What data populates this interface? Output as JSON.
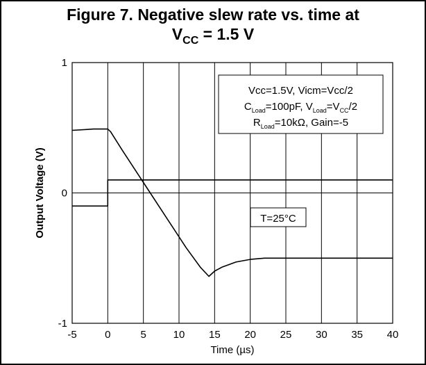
{
  "title_line1": "Figure 7. Negative slew rate vs. time at",
  "title_line2": {
    "prefix": "V",
    "sub": "CC",
    "suffix": " = 1.5 V"
  },
  "chart_data": {
    "type": "line",
    "xlabel": "Time (µs)",
    "ylabel": "Output Voltage (V)",
    "xlim": [
      -5,
      40
    ],
    "ylim": [
      -1,
      1
    ],
    "x_ticks": [
      -5,
      0,
      5,
      10,
      15,
      20,
      25,
      30,
      35,
      40
    ],
    "y_ticks": [
      1,
      0,
      -1
    ],
    "x_tick_labels": [
      "-5",
      "0",
      "5",
      "10",
      "15",
      "20",
      "25",
      "30",
      "35",
      "40"
    ],
    "y_tick_labels": [
      "1",
      "0",
      "-1"
    ],
    "grid": "vertical",
    "series": [
      {
        "color": "#000000",
        "x": [
          -5,
          0,
          0,
          40
        ],
        "y": [
          -0.1,
          -0.1,
          0.1,
          0.1
        ]
      },
      {
        "color": "#000000",
        "x": [
          -5,
          -2,
          0,
          0.4,
          2,
          5,
          8,
          11,
          13,
          14.2,
          15,
          16,
          17,
          18,
          19,
          20,
          22,
          25,
          30,
          35,
          40
        ],
        "y": [
          0.48,
          0.49,
          0.49,
          0.47,
          0.33,
          0.08,
          -0.17,
          -0.42,
          -0.57,
          -0.64,
          -0.6,
          -0.57,
          -0.55,
          -0.53,
          -0.52,
          -0.51,
          -0.5,
          -0.5,
          -0.5,
          -0.5,
          -0.5
        ]
      }
    ],
    "annotations": [
      {
        "lines": [
          [
            {
              "t": "Vcc=1.5V, Vicm=Vcc/2"
            }
          ],
          [
            {
              "t": "C"
            },
            {
              "t": "Load",
              "sub": true
            },
            {
              "t": "=100pF, V"
            },
            {
              "t": "Load",
              "sub": true
            },
            {
              "t": "=V"
            },
            {
              "t": "CC",
              "sub": true
            },
            {
              "t": "/2"
            }
          ],
          [
            {
              "t": "R"
            },
            {
              "t": "Load",
              "sub": true
            },
            {
              "t": "=10kΩ, Gain=-5"
            }
          ]
        ]
      },
      {
        "lines": [
          [
            {
              "t": "T=25°C"
            }
          ]
        ]
      }
    ]
  }
}
